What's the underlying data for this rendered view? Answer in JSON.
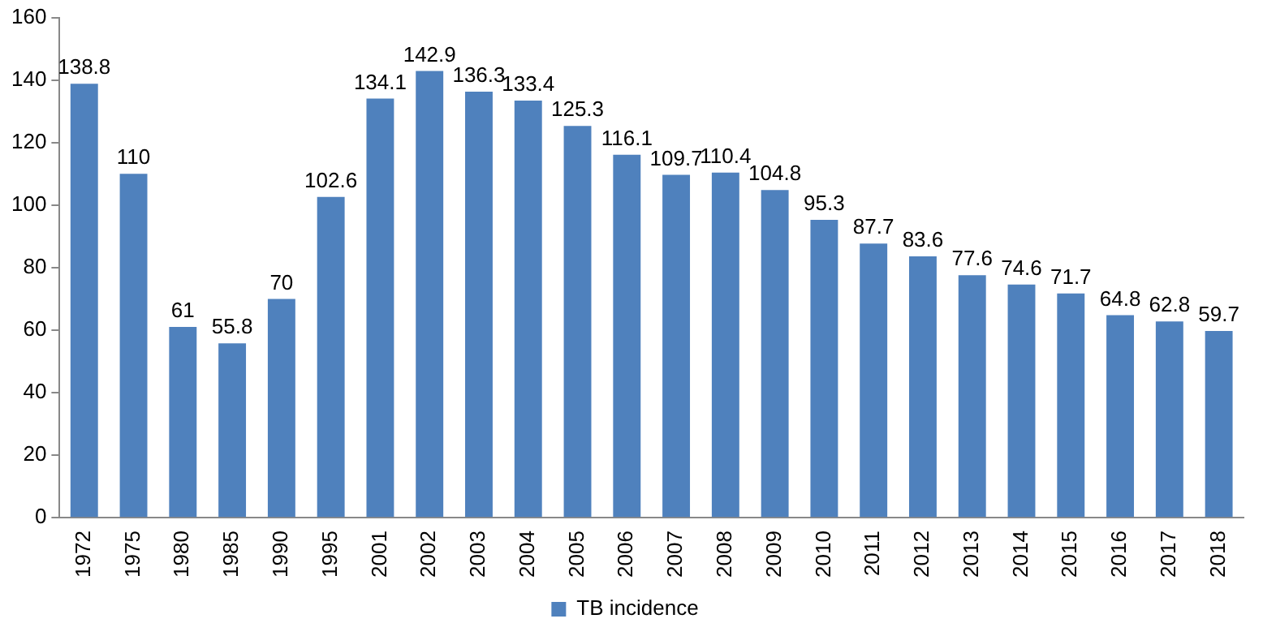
{
  "chart_data": {
    "type": "bar",
    "categories": [
      "1972",
      "1975",
      "1980",
      "1985",
      "1990",
      "1995",
      "2001",
      "2002",
      "2003",
      "2004",
      "2005",
      "2006",
      "2007",
      "2008",
      "2009",
      "2010",
      "2011",
      "2012",
      "2013",
      "2014",
      "2015",
      "2016",
      "2017",
      "2018"
    ],
    "series": [
      {
        "name": "TB incidence",
        "color": "#4f81bd",
        "values": [
          138.8,
          110,
          61,
          55.8,
          70,
          102.6,
          134.1,
          142.9,
          136.3,
          133.4,
          125.3,
          116.1,
          109.7,
          110.4,
          104.8,
          95.3,
          87.7,
          83.6,
          77.6,
          74.6,
          71.7,
          64.8,
          62.8,
          59.7
        ]
      }
    ],
    "ylim": [
      0,
      160
    ],
    "yticks": [
      0,
      20,
      40,
      60,
      80,
      100,
      120,
      140,
      160
    ],
    "grid": false,
    "legend": "bottom",
    "data_labels": true
  }
}
